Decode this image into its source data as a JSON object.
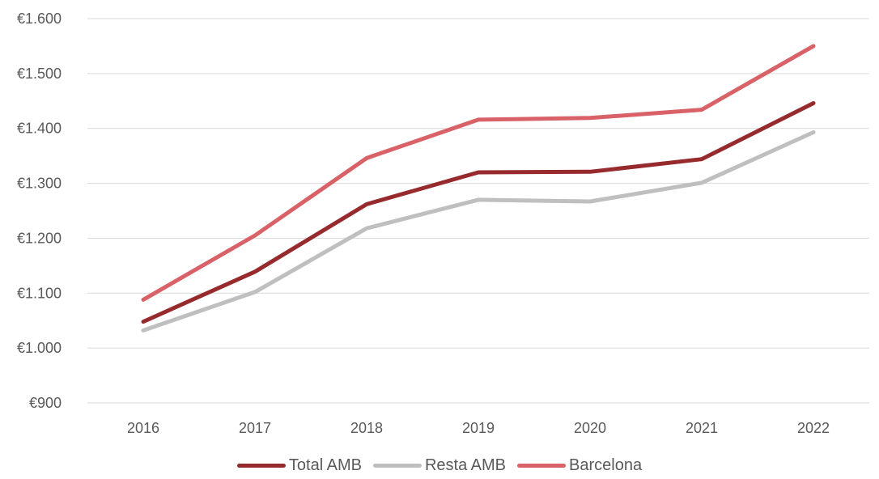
{
  "chart_data": {
    "type": "line",
    "title": "",
    "xlabel": "",
    "ylabel": "",
    "categories": [
      "2016",
      "2017",
      "2018",
      "2019",
      "2020",
      "2021",
      "2022"
    ],
    "y_ticks": [
      "€900",
      "€1.000",
      "€1.100",
      "€1.200",
      "€1.300",
      "€1.400",
      "€1.500",
      "€1.600"
    ],
    "ylim": [
      900,
      1600
    ],
    "grid": true,
    "legend_position": "bottom",
    "series": [
      {
        "name": "Total AMB",
        "color": "#962a2d",
        "values": [
          1048,
          1139,
          1262,
          1320,
          1321,
          1344,
          1446
        ]
      },
      {
        "name": "Resta AMB",
        "color": "#bfbfbf",
        "values": [
          1032,
          1102,
          1218,
          1270,
          1267,
          1301,
          1393
        ]
      },
      {
        "name": "Barcelona",
        "color": "#d86267",
        "values": [
          1088,
          1205,
          1346,
          1416,
          1419,
          1434,
          1550
        ]
      }
    ]
  }
}
